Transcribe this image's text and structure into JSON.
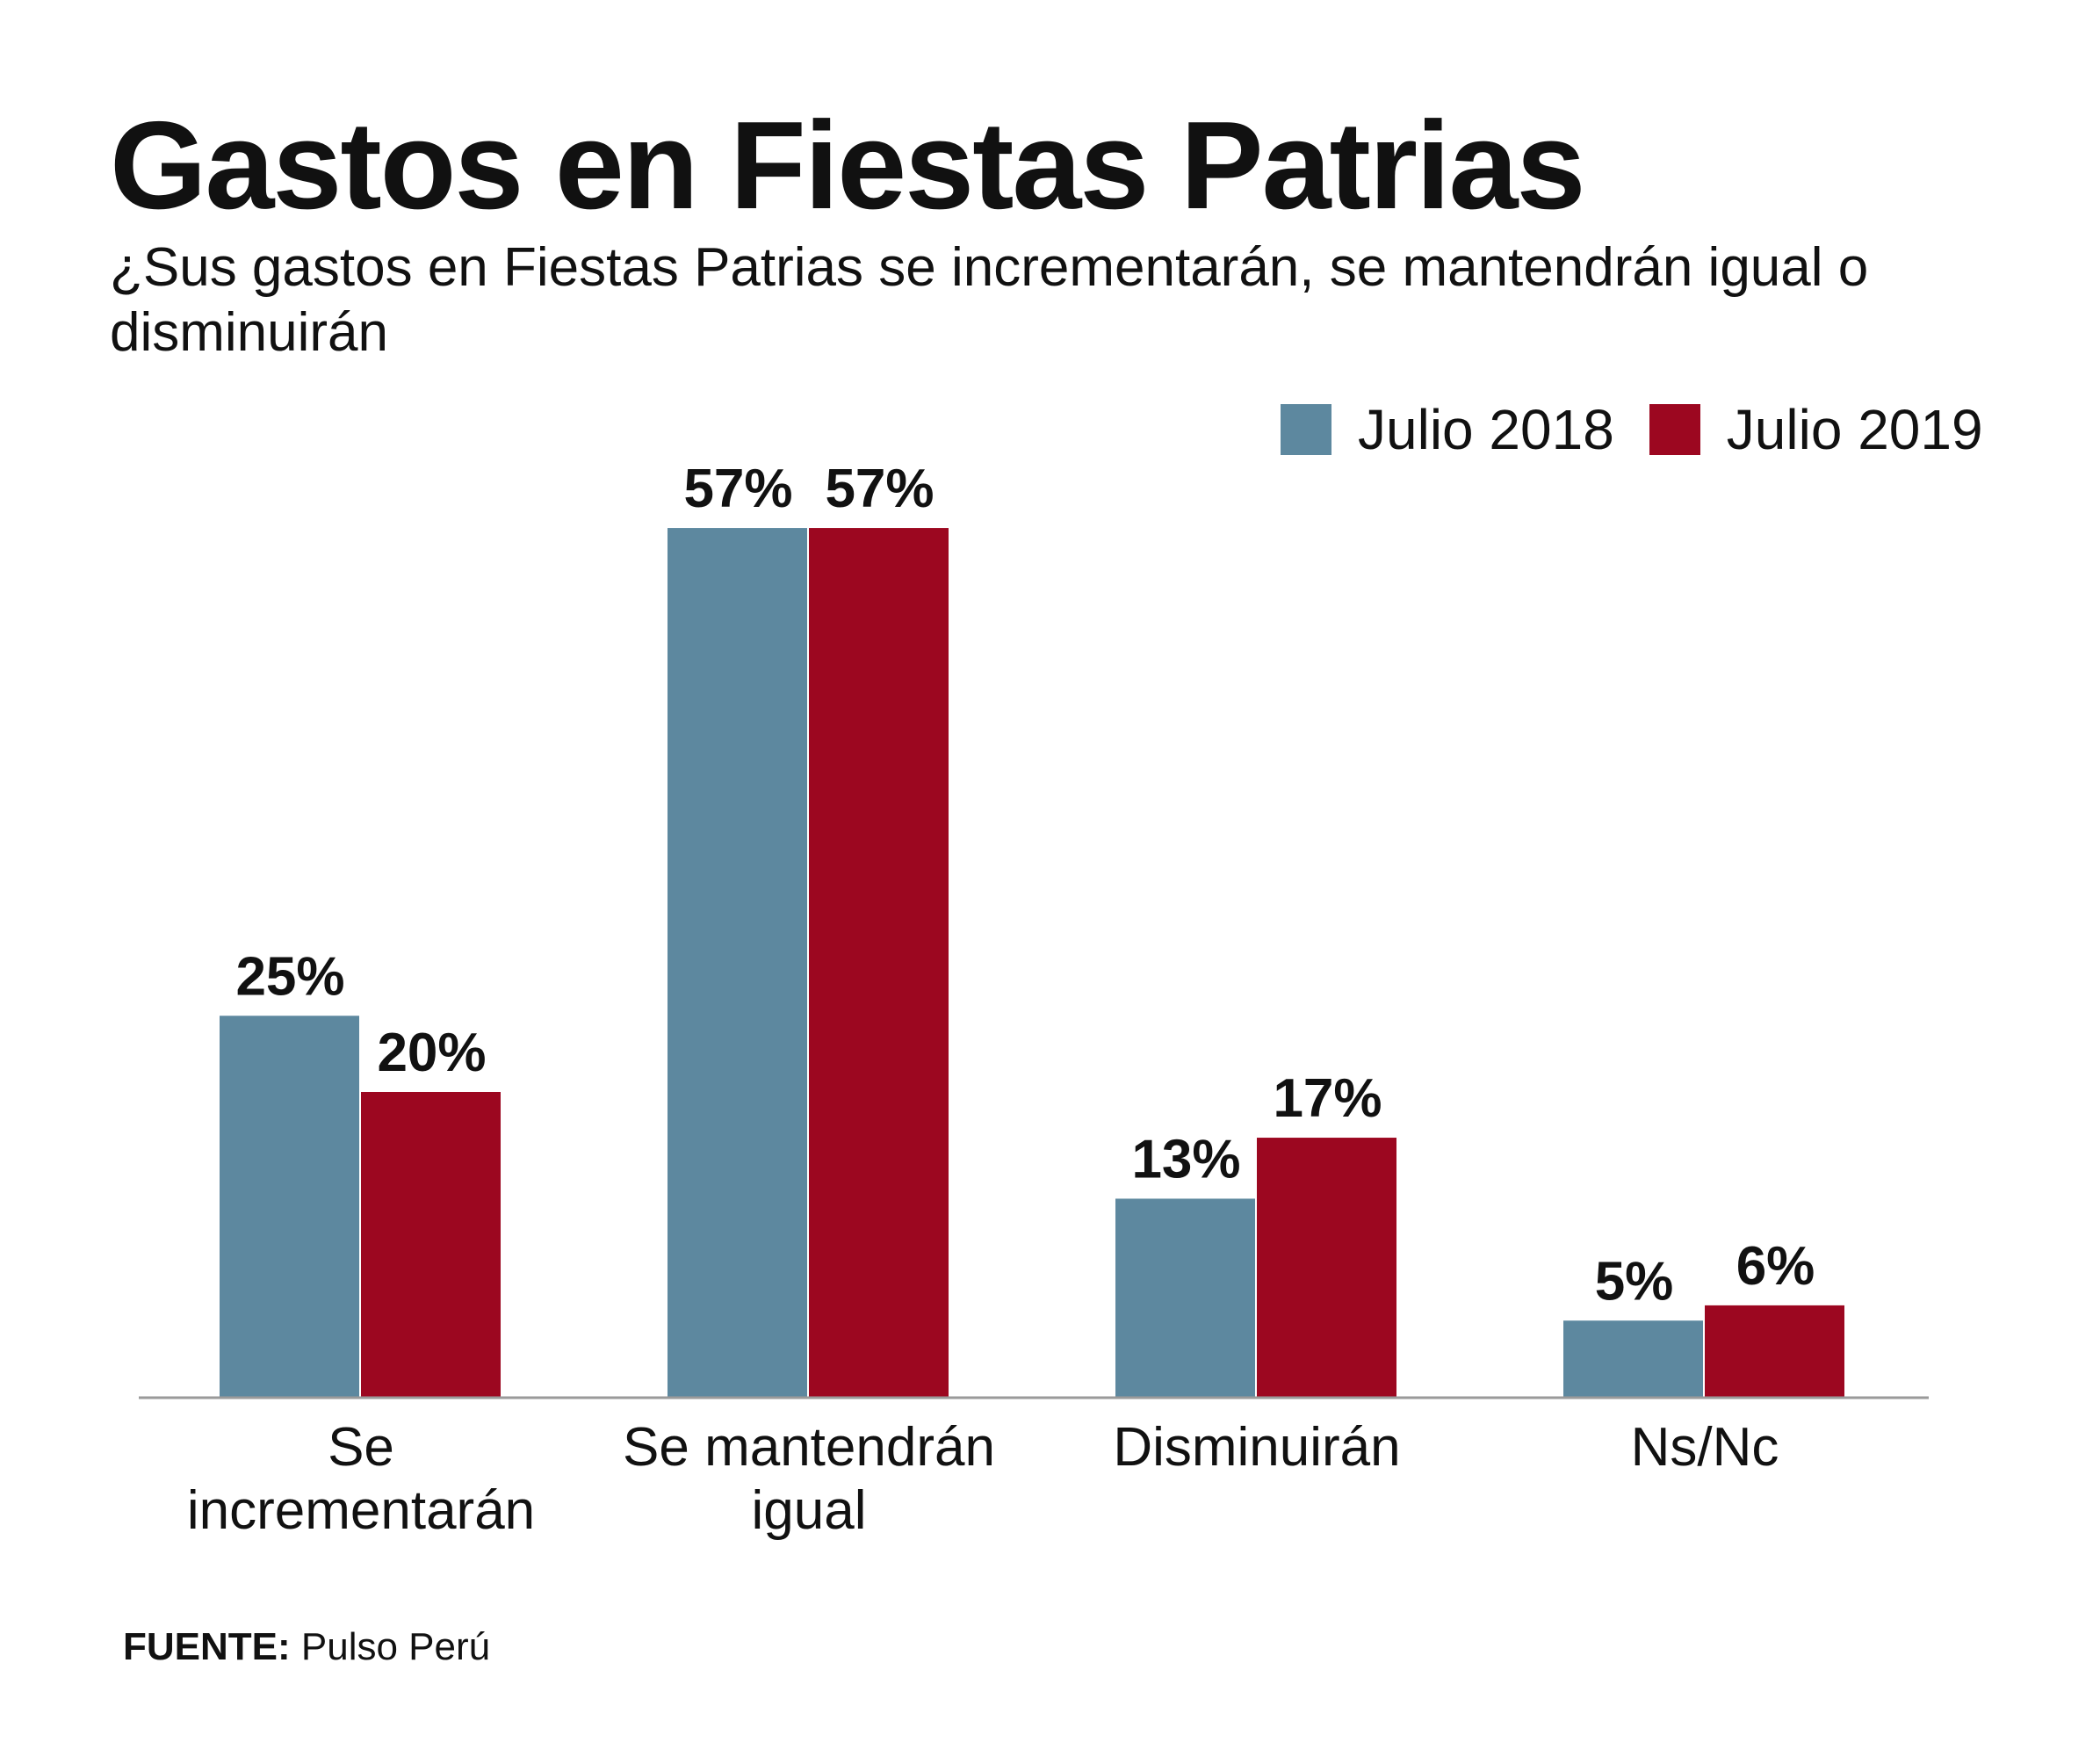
{
  "title": "Gastos en Fiestas Patrias",
  "subtitle": "¿Sus gastos en Fiestas Patrias se incrementarán, se mantendrán igual o disminuirán",
  "source": {
    "label": "FUENTE:",
    "text": "Pulso Perú"
  },
  "colors": {
    "series_2018": "#5d889f",
    "series_2019": "#9c0720",
    "axis": "#9a9a9a"
  },
  "chart_data": {
    "type": "bar",
    "title": "Gastos en Fiestas Patrias",
    "xlabel": "",
    "ylabel": "",
    "ylim": [
      0,
      60
    ],
    "grid": false,
    "legend": "top-right",
    "categories": [
      [
        "Se",
        "incrementarán"
      ],
      [
        "Se mantendrán",
        "igual"
      ],
      [
        "Disminuirán"
      ],
      [
        "Ns/Nc"
      ]
    ],
    "series": [
      {
        "name": "Julio 2018",
        "color": "#5d889f",
        "values": [
          25,
          57,
          13,
          5
        ],
        "labels": [
          "25%",
          "57%",
          "13%",
          "5%"
        ]
      },
      {
        "name": "Julio 2019",
        "color": "#9c0720",
        "values": [
          20,
          57,
          17,
          6
        ],
        "labels": [
          "20%",
          "57%",
          "17%",
          "6%"
        ]
      }
    ]
  }
}
